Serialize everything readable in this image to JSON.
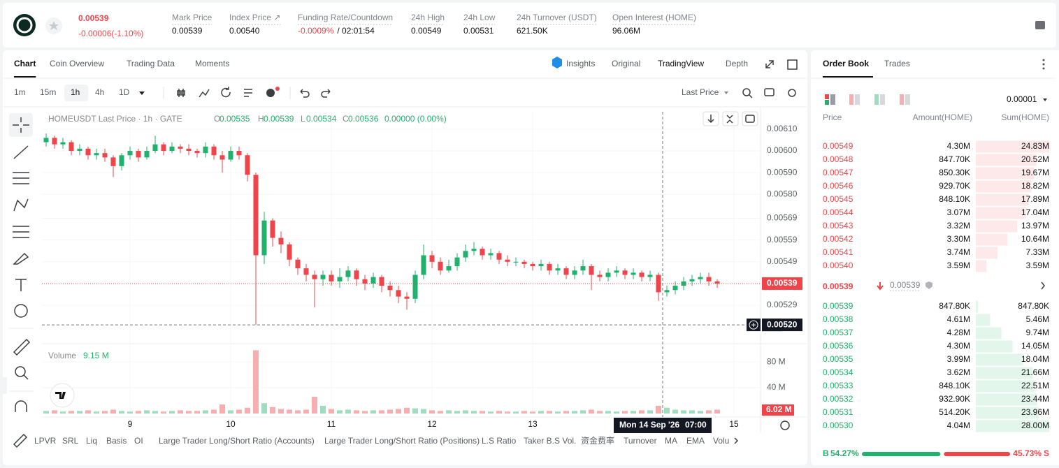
{
  "header": {
    "price": "0.00539",
    "change": "-0.00006(-1.10%)",
    "stats": [
      {
        "label": "Mark Price",
        "value": "0.00539"
      },
      {
        "label": "Index Price ↗",
        "value": "0.00540"
      },
      {
        "label": "Funding Rate/Countdown",
        "value": "-0.0009%",
        "extra": "/ 02:01:54"
      },
      {
        "label": "24h High",
        "value": "0.00549"
      },
      {
        "label": "24h Low",
        "value": "0.00531"
      },
      {
        "label": "24h Turnover (USDT)",
        "value": "621.50K"
      },
      {
        "label": "Open Interest (HOME)",
        "value": "96.06M"
      }
    ]
  },
  "chart_tabs": [
    "Chart",
    "Coin Overview",
    "Trading Data",
    "Moments"
  ],
  "view_tabs": [
    "Insights",
    "Original",
    "TradingView",
    "Depth"
  ],
  "intervals": [
    "1m",
    "15m",
    "1h",
    "4h",
    "1D"
  ],
  "price_type": "Last Price",
  "indicators": [
    "LPVR",
    "SRL",
    "Liq",
    "Basis",
    "OI",
    "Large Trader Long/Short Ratio (Accounts)",
    "Large Trader Long/Short Ratio (Positions)",
    "L.S Ratio",
    "Taker B.S Vol.",
    "资金费率",
    "Turnover",
    "MA",
    "EMA",
    "Volu"
  ],
  "chart_data": {
    "type": "candlestick",
    "title": "HOMEUSDT Last Price · 1h · GATE",
    "legend": {
      "labels": [
        "O",
        "H",
        "L",
        "C"
      ],
      "values": [
        "0.00535",
        "0.00539",
        "0.00534",
        "0.00536"
      ],
      "change": "0.00000 (0.00%)"
    },
    "x": [
      4,
      6,
      8,
      10,
      12,
      14,
      16,
      18,
      20,
      22,
      24,
      26,
      28,
      30,
      32,
      34,
      36,
      38,
      40,
      42,
      44,
      46,
      48,
      50,
      52,
      54,
      56,
      58,
      60,
      62,
      64,
      66,
      68,
      70,
      72,
      74,
      76,
      78,
      80,
      82,
      84,
      86,
      88,
      90,
      92,
      94,
      96,
      98,
      100,
      102,
      104,
      106,
      108,
      110,
      112,
      114,
      116,
      118,
      120,
      122,
      124,
      126,
      128,
      130,
      132,
      134,
      136,
      138,
      140,
      142,
      144,
      146,
      148,
      150,
      152,
      154,
      156,
      158,
      160,
      162,
      164
    ],
    "ohlc": [
      [
        0.00604,
        0.00608,
        0.00602,
        0.00606
      ],
      [
        0.00606,
        0.00607,
        0.00601,
        0.00603
      ],
      [
        0.00603,
        0.00606,
        0.00601,
        0.00604
      ],
      [
        0.00604,
        0.00605,
        0.00598,
        0.006
      ],
      [
        0.006,
        0.00603,
        0.00598,
        0.00601
      ],
      [
        0.00601,
        0.00602,
        0.00596,
        0.00598
      ],
      [
        0.00598,
        0.00601,
        0.00596,
        0.00599
      ],
      [
        0.00599,
        0.00601,
        0.00595,
        0.00597
      ],
      [
        0.00597,
        0.00598,
        0.00588,
        0.00593
      ],
      [
        0.00593,
        0.00599,
        0.00591,
        0.00598
      ],
      [
        0.00598,
        0.00602,
        0.00596,
        0.006
      ],
      [
        0.006,
        0.00601,
        0.00595,
        0.00597
      ],
      [
        0.00597,
        0.00602,
        0.00596,
        0.006
      ],
      [
        0.006,
        0.00607,
        0.00599,
        0.00603
      ],
      [
        0.00603,
        0.00604,
        0.00598,
        0.006
      ],
      [
        0.006,
        0.00604,
        0.00599,
        0.00602
      ],
      [
        0.00602,
        0.00603,
        0.00599,
        0.00601
      ],
      [
        0.00601,
        0.00603,
        0.00598,
        0.006
      ],
      [
        0.006,
        0.00601,
        0.00597,
        0.00599
      ],
      [
        0.00599,
        0.00604,
        0.00597,
        0.00602
      ],
      [
        0.00602,
        0.00603,
        0.00596,
        0.00598
      ],
      [
        0.00598,
        0.006,
        0.0059,
        0.00596
      ],
      [
        0.00596,
        0.00602,
        0.00595,
        0.006
      ],
      [
        0.006,
        0.00602,
        0.00596,
        0.00598
      ],
      [
        0.00598,
        0.00599,
        0.00586,
        0.00589
      ],
      [
        0.00589,
        0.0059,
        0.0052,
        0.00552
      ],
      [
        0.00552,
        0.00572,
        0.00548,
        0.00568
      ],
      [
        0.00568,
        0.00569,
        0.00556,
        0.0056
      ],
      [
        0.0056,
        0.00563,
        0.00553,
        0.00557
      ],
      [
        0.00557,
        0.00558,
        0.00547,
        0.0055
      ],
      [
        0.0055,
        0.00551,
        0.00543,
        0.00546
      ],
      [
        0.00546,
        0.00548,
        0.0054,
        0.00543
      ],
      [
        0.00543,
        0.00545,
        0.00528,
        0.00541
      ],
      [
        0.00541,
        0.00545,
        0.00538,
        0.00543
      ],
      [
        0.00543,
        0.00545,
        0.00538,
        0.0054
      ],
      [
        0.0054,
        0.00546,
        0.00537,
        0.00542
      ],
      [
        0.00542,
        0.00547,
        0.0054,
        0.00545
      ],
      [
        0.00545,
        0.00546,
        0.00538,
        0.00541
      ],
      [
        0.00541,
        0.00543,
        0.00536,
        0.00539
      ],
      [
        0.00539,
        0.00544,
        0.00537,
        0.00542
      ],
      [
        0.00542,
        0.00543,
        0.00535,
        0.00538
      ],
      [
        0.00538,
        0.0054,
        0.00533,
        0.00536
      ],
      [
        0.00536,
        0.00538,
        0.0053,
        0.00533
      ],
      [
        0.00533,
        0.00535,
        0.00527,
        0.00532
      ],
      [
        0.00532,
        0.00545,
        0.0053,
        0.00543
      ],
      [
        0.00543,
        0.00557,
        0.00541,
        0.00552
      ],
      [
        0.00552,
        0.00554,
        0.00546,
        0.00549
      ],
      [
        0.00549,
        0.00551,
        0.00543,
        0.00545
      ],
      [
        0.00545,
        0.0055,
        0.00544,
        0.00547
      ],
      [
        0.00547,
        0.00553,
        0.00545,
        0.00551
      ],
      [
        0.00551,
        0.00557,
        0.00549,
        0.00554
      ],
      [
        0.00554,
        0.00558,
        0.00552,
        0.00555
      ],
      [
        0.00555,
        0.00556,
        0.0055,
        0.00552
      ],
      [
        0.00552,
        0.00555,
        0.0055,
        0.00553
      ],
      [
        0.00553,
        0.00554,
        0.00548,
        0.0055
      ],
      [
        0.0055,
        0.00552,
        0.00547,
        0.00549
      ],
      [
        0.00549,
        0.00551,
        0.00547,
        0.00549
      ],
      [
        0.00549,
        0.0055,
        0.00546,
        0.00548
      ],
      [
        0.00548,
        0.00549,
        0.00545,
        0.00547
      ],
      [
        0.00547,
        0.0055,
        0.00545,
        0.00548
      ],
      [
        0.00548,
        0.00549,
        0.00543,
        0.00545
      ],
      [
        0.00545,
        0.00548,
        0.00543,
        0.00546
      ],
      [
        0.00546,
        0.00547,
        0.00541,
        0.00543
      ],
      [
        0.00543,
        0.00547,
        0.00541,
        0.00545
      ],
      [
        0.00545,
        0.0055,
        0.00543,
        0.00547
      ],
      [
        0.00547,
        0.00548,
        0.00536,
        0.00543
      ],
      [
        0.00543,
        0.00545,
        0.0054,
        0.00542
      ],
      [
        0.00542,
        0.00546,
        0.0054,
        0.00544
      ],
      [
        0.00544,
        0.00547,
        0.00542,
        0.00545
      ],
      [
        0.00545,
        0.00546,
        0.00541,
        0.00543
      ],
      [
        0.00543,
        0.00546,
        0.00541,
        0.00544
      ],
      [
        0.00544,
        0.00545,
        0.0054,
        0.00542
      ],
      [
        0.00542,
        0.00545,
        0.0054,
        0.00543
      ],
      [
        0.00543,
        0.00544,
        0.00531,
        0.00535
      ],
      [
        0.00535,
        0.00538,
        0.00533,
        0.00536
      ],
      [
        0.00536,
        0.0054,
        0.00534,
        0.00538
      ],
      [
        0.00538,
        0.00542,
        0.00536,
        0.0054
      ],
      [
        0.0054,
        0.00543,
        0.00538,
        0.00541
      ],
      [
        0.00541,
        0.00544,
        0.00539,
        0.00542
      ],
      [
        0.00542,
        0.00544,
        0.00538,
        0.0054
      ],
      [
        0.0054,
        0.00541,
        0.00537,
        0.00539
      ]
    ],
    "volume": [
      4,
      5,
      3,
      4,
      4,
      5,
      3,
      4,
      6,
      4,
      3,
      4,
      5,
      4,
      3,
      4,
      5,
      4,
      4,
      5,
      6,
      14,
      5,
      6,
      9,
      98,
      16,
      10,
      7,
      6,
      5,
      6,
      26,
      12,
      7,
      5,
      6,
      5,
      4,
      5,
      5,
      6,
      7,
      9,
      8,
      7,
      5,
      4,
      5,
      4,
      5,
      4,
      4,
      3,
      4,
      3,
      3,
      4,
      3,
      4,
      4,
      3,
      4,
      4,
      5,
      6,
      4,
      4,
      3,
      4,
      4,
      5,
      5,
      12,
      9,
      6,
      5,
      5,
      4,
      5,
      6.02
    ],
    "up_color": "#20b26c",
    "down_color": "#ef454a",
    "up_volume_color": "#9fdcc0",
    "down_volume_color": "#f6aeb0",
    "xlim": [
      3,
      174.33
    ],
    "xticks": [
      {
        "value": 24,
        "label": "9"
      },
      {
        "value": 48,
        "label": "10"
      },
      {
        "value": 72,
        "label": "11"
      },
      {
        "value": 96,
        "label": "12"
      },
      {
        "value": 120,
        "label": "13"
      },
      {
        "value": 168,
        "label": "15"
      }
    ],
    "ylim": [
      0.00512,
      0.00618
    ],
    "yticks": [
      {
        "value": 0.0061,
        "label": "0.00610"
      },
      {
        "value": 0.006,
        "label": "0.00600"
      },
      {
        "value": 0.0059,
        "label": "0.00590"
      },
      {
        "value": 0.0058,
        "label": "0.00580"
      },
      0.00569,
      0.00559,
      0.00549,
      0.00529
    ],
    "last_price": {
      "value": 0.00539,
      "label": "0.00539"
    },
    "crosshair": {
      "x": 151,
      "y": {
        "value": 0.0052,
        "label": "0.00520"
      },
      "date": "Mon 14 Sep '26",
      "time": "07:00"
    },
    "volume_title": "Volume",
    "volume_total": "9.15 M",
    "last_volume_label": "6.02 M",
    "volume_ylim": [
      0,
      105
    ],
    "volume_yticks": [
      {
        "value": 80,
        "label": "80 M"
      },
      {
        "value": 40,
        "label": "40 M"
      }
    ],
    "grid": true
  },
  "order_book": {
    "tabs": [
      "Order Book",
      "Trades"
    ],
    "precision": "0.00001",
    "columns": [
      "Price",
      "Amount(HOME)",
      "Sum(HOME)"
    ],
    "asks": [
      {
        "price": "0.00549",
        "amount": "4.30M",
        "sum": {
          "value": 24.83,
          "label": "24.83M"
        }
      },
      {
        "price": "0.00548",
        "amount": "847.70K",
        "sum": {
          "value": 20.52,
          "label": "20.52M"
        }
      },
      {
        "price": "0.00547",
        "amount": "850.30K",
        "sum": {
          "value": 19.67,
          "label": "19.67M"
        }
      },
      {
        "price": "0.00546",
        "amount": "929.70K",
        "sum": {
          "value": 18.82,
          "label": "18.82M"
        }
      },
      {
        "price": "0.00545",
        "amount": "848.10K",
        "sum": {
          "value": 17.89,
          "label": "17.89M"
        }
      },
      {
        "price": "0.00544",
        "amount": "3.07M",
        "sum": {
          "value": 17.04,
          "label": "17.04M"
        }
      },
      {
        "price": "0.00543",
        "amount": "3.32M",
        "sum": {
          "value": 13.97,
          "label": "13.97M"
        }
      },
      {
        "price": "0.00542",
        "amount": "3.30M",
        "sum": {
          "value": 10.64,
          "label": "10.64M"
        }
      },
      {
        "price": "0.00541",
        "amount": "3.74M",
        "sum": {
          "value": 7.33,
          "label": "7.33M"
        }
      },
      {
        "price": "0.00540",
        "amount": "3.59M",
        "sum": {
          "value": 3.59,
          "label": "3.59M"
        }
      }
    ],
    "last_price": "0.00539",
    "mark_price": "0.00539",
    "bids": [
      {
        "price": "0.00539",
        "amount": "847.80K",
        "sum": {
          "value": 0.8478,
          "label": "847.80K"
        }
      },
      {
        "price": "0.00538",
        "amount": "4.61M",
        "sum": {
          "value": 5.46,
          "label": "5.46M"
        }
      },
      {
        "price": "0.00537",
        "amount": "4.28M",
        "sum": {
          "value": 9.74,
          "label": "9.74M"
        }
      },
      {
        "price": "0.00536",
        "amount": "4.30M",
        "sum": {
          "value": 14.05,
          "label": "14.05M"
        }
      },
      {
        "price": "0.00535",
        "amount": "3.99M",
        "sum": {
          "value": 18.04,
          "label": "18.04M"
        }
      },
      {
        "price": "0.00534",
        "amount": "3.62M",
        "sum": {
          "value": 21.66,
          "label": "21.66M"
        }
      },
      {
        "price": "0.00533",
        "amount": "848.10K",
        "sum": {
          "value": 22.51,
          "label": "22.51M"
        }
      },
      {
        "price": "0.00532",
        "amount": "932.90K",
        "sum": {
          "value": 23.44,
          "label": "23.44M"
        }
      },
      {
        "price": "0.00531",
        "amount": "514.20K",
        "sum": {
          "value": 23.96,
          "label": "23.96M"
        }
      },
      {
        "price": "0.00530",
        "amount": "4.04M",
        "sum": {
          "value": 28.0,
          "label": "28.00M"
        }
      }
    ],
    "buy_label": "B",
    "buy_ratio": {
      "value": 54.27,
      "label": "54.27%"
    },
    "sell_ratio": {
      "value": 45.73,
      "label": "45.73%"
    },
    "sell_label": "S"
  }
}
